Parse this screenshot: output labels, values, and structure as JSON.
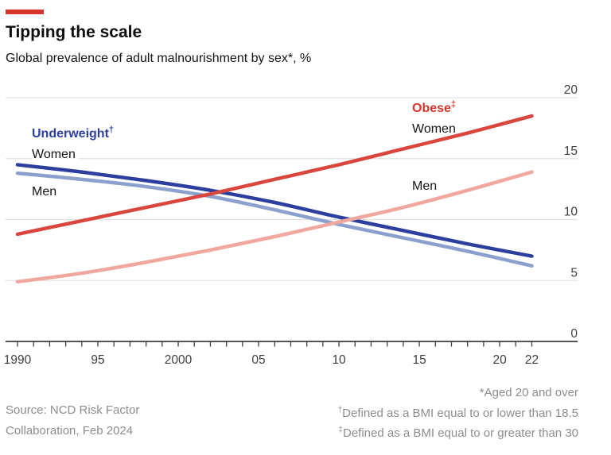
{
  "brand": {
    "tag_color": "#d6352b"
  },
  "header": {
    "title": "Tipping the scale",
    "subtitle": "Global prevalence of adult malnourishment by sex*, %"
  },
  "chart_data": {
    "type": "line",
    "x": [
      1990,
      1994,
      1998,
      2002,
      2006,
      2010,
      2014,
      2018,
      2022
    ],
    "series": [
      {
        "id": "underweight-women",
        "group": "Underweight",
        "label": "Women",
        "color": "#2c3f9e",
        "values": [
          14.5,
          13.9,
          13.2,
          12.4,
          11.4,
          10.2,
          9.1,
          8.0,
          7.0
        ]
      },
      {
        "id": "underweight-men",
        "group": "Underweight",
        "label": "Men",
        "color": "#8ba0cd",
        "values": [
          13.8,
          13.3,
          12.7,
          11.9,
          10.8,
          9.6,
          8.5,
          7.4,
          6.2
        ]
      },
      {
        "id": "obese-women",
        "group": "Obese",
        "label": "Women",
        "color": "#d8463d",
        "values": [
          8.8,
          9.9,
          11.0,
          12.1,
          13.3,
          14.5,
          15.8,
          17.1,
          18.5
        ]
      },
      {
        "id": "obese-men",
        "group": "Obese",
        "label": "Men",
        "color": "#f0a89e",
        "values": [
          4.9,
          5.6,
          6.5,
          7.5,
          8.6,
          9.8,
          11.0,
          12.4,
          13.9
        ]
      }
    ],
    "ylim": [
      0,
      20
    ],
    "yticks": [
      0,
      5,
      10,
      15,
      20
    ],
    "xlim": [
      1990,
      2022
    ],
    "xtick_minor_every": 1,
    "xtick_labels": [
      {
        "year": 1990,
        "label": "1990"
      },
      {
        "year": 1995,
        "label": "95"
      },
      {
        "year": 2000,
        "label": "2000"
      },
      {
        "year": 2005,
        "label": "05"
      },
      {
        "year": 2010,
        "label": "10"
      },
      {
        "year": 2015,
        "label": "15"
      },
      {
        "year": 2020,
        "label": "20"
      },
      {
        "year": 2022,
        "label": "22"
      }
    ],
    "grid": "horizontal",
    "legend_position": "inline-annotations",
    "colors": {
      "gridline": "#e0e0e0",
      "axis": "#3d3d3d",
      "axis_label": "#404040"
    }
  },
  "annotations": {
    "underweight": {
      "title": "Underweight",
      "title_sup": "†",
      "women": "Women",
      "men": "Men",
      "color": "#2c3f9e"
    },
    "obese": {
      "title": "Obese",
      "title_sup": "‡",
      "women": "Women",
      "men": "Men",
      "color": "#d6352b"
    }
  },
  "footnotes": [
    {
      "sup": "*",
      "text": "Aged 20 and over"
    },
    {
      "sup": "†",
      "text": "Defined as a BMI equal to or lower than 18.5"
    },
    {
      "sup": "‡",
      "text": "Defined as a BMI equal to or greater than 30"
    }
  ],
  "source": {
    "line1": "Source: NCD Risk Factor",
    "line2": "Collaboration, Feb 2024"
  }
}
